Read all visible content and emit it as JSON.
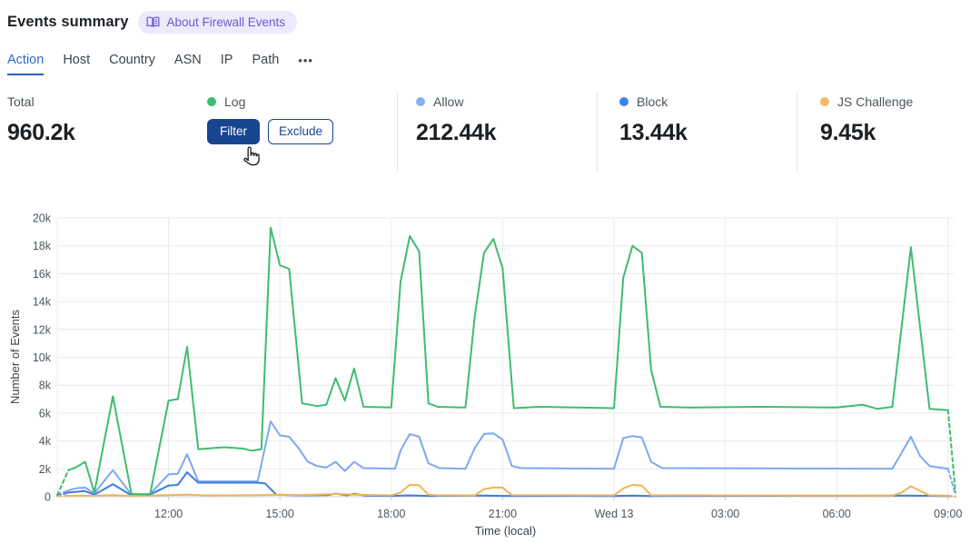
{
  "header": {
    "title": "Events summary",
    "about": {
      "label": "About Firewall Events"
    }
  },
  "tabs": {
    "items": [
      {
        "label": "Action",
        "active": true
      },
      {
        "label": "Host"
      },
      {
        "label": "Country"
      },
      {
        "label": "ASN"
      },
      {
        "label": "IP"
      },
      {
        "label": "Path"
      }
    ],
    "more": "•••"
  },
  "stats": {
    "total": {
      "label": "Total",
      "value": "960.2k"
    },
    "log": {
      "label": "Log",
      "color": "#3ebd6e",
      "filter_button": "Filter",
      "exclude_button": "Exclude"
    },
    "allow": {
      "label": "Allow",
      "value": "212.44k",
      "color": "#8aaff3"
    },
    "block": {
      "label": "Block",
      "value": "13.44k",
      "color": "#3c82f6"
    },
    "js_challenge": {
      "label": "JS Challenge",
      "value": "9.45k",
      "color": "#f0ba69"
    }
  },
  "chart_data": {
    "type": "line",
    "xlabel": "Time (local)",
    "ylabel": "Number of Events",
    "x_axis": {
      "unit": "hours from Tue 09:00 to Wed 09:00",
      "range_hours": [
        0,
        24
      ],
      "ticks": [
        {
          "h": 3,
          "label": "12:00"
        },
        {
          "h": 6,
          "label": "15:00"
        },
        {
          "h": 9,
          "label": "18:00"
        },
        {
          "h": 12,
          "label": "21:00"
        },
        {
          "h": 15,
          "label": "Wed 13"
        },
        {
          "h": 18,
          "label": "03:00"
        },
        {
          "h": 21,
          "label": "06:00"
        },
        {
          "h": 24,
          "label": "09:00"
        }
      ]
    },
    "y_axis": {
      "min": 0,
      "max": 20000,
      "tick_step": 2000,
      "ticks": [
        {
          "v": 0,
          "label": "0"
        },
        {
          "v": 2000,
          "label": "2k"
        },
        {
          "v": 4000,
          "label": "4k"
        },
        {
          "v": 6000,
          "label": "6k"
        },
        {
          "v": 8000,
          "label": "8k"
        },
        {
          "v": 10000,
          "label": "10k"
        },
        {
          "v": 12000,
          "label": "12k"
        },
        {
          "v": 14000,
          "label": "14k"
        },
        {
          "v": 16000,
          "label": "16k"
        },
        {
          "v": 18000,
          "label": "18k"
        },
        {
          "v": 20000,
          "label": "20k"
        }
      ]
    },
    "legend_position": "top-stats-row",
    "grid": true,
    "series": [
      {
        "id": "allow",
        "name": "Allow",
        "color": "#7da8f1",
        "lead": [
          [
            0,
            150
          ]
        ],
        "tail": [
          [
            24.2,
            150
          ]
        ],
        "points": [
          [
            0.3,
            450
          ],
          [
            0.5,
            600
          ],
          [
            0.75,
            650
          ],
          [
            1.0,
            250
          ],
          [
            1.5,
            1900
          ],
          [
            2.0,
            150
          ],
          [
            2.5,
            200
          ],
          [
            3.0,
            1600
          ],
          [
            3.25,
            1650
          ],
          [
            3.5,
            3050
          ],
          [
            3.8,
            1100
          ],
          [
            5.4,
            1100
          ],
          [
            5.75,
            5400
          ],
          [
            6.0,
            4400
          ],
          [
            6.25,
            4300
          ],
          [
            6.5,
            3500
          ],
          [
            6.75,
            2500
          ],
          [
            7.0,
            2200
          ],
          [
            7.25,
            2100
          ],
          [
            7.5,
            2500
          ],
          [
            7.75,
            1850
          ],
          [
            8.0,
            2500
          ],
          [
            8.25,
            2050
          ],
          [
            9.1,
            2000
          ],
          [
            9.25,
            3300
          ],
          [
            9.5,
            4500
          ],
          [
            9.75,
            4300
          ],
          [
            10.0,
            2400
          ],
          [
            10.3,
            2050
          ],
          [
            11.0,
            2000
          ],
          [
            11.25,
            3500
          ],
          [
            11.5,
            4500
          ],
          [
            11.75,
            4550
          ],
          [
            12.0,
            4100
          ],
          [
            12.25,
            2200
          ],
          [
            12.5,
            2050
          ],
          [
            15.0,
            2000
          ],
          [
            15.25,
            4200
          ],
          [
            15.5,
            4350
          ],
          [
            15.75,
            4250
          ],
          [
            16.0,
            2500
          ],
          [
            16.3,
            2050
          ],
          [
            22.5,
            2000
          ],
          [
            23.0,
            4300
          ],
          [
            23.25,
            2900
          ],
          [
            23.5,
            2200
          ],
          [
            24.0,
            2000
          ]
        ]
      },
      {
        "id": "block",
        "name": "Block",
        "color": "#3d7ee2",
        "lead": [
          [
            0,
            80
          ]
        ],
        "tail": [
          [
            24.2,
            20
          ]
        ],
        "points": [
          [
            0.3,
            300
          ],
          [
            0.5,
            350
          ],
          [
            0.75,
            400
          ],
          [
            1.0,
            150
          ],
          [
            1.5,
            900
          ],
          [
            2.0,
            100
          ],
          [
            2.5,
            150
          ],
          [
            3.0,
            800
          ],
          [
            3.25,
            850
          ],
          [
            3.5,
            1750
          ],
          [
            3.8,
            1000
          ],
          [
            5.4,
            1000
          ],
          [
            5.6,
            950
          ],
          [
            5.9,
            150
          ],
          [
            6.5,
            100
          ],
          [
            7.3,
            120
          ],
          [
            7.5,
            220
          ],
          [
            7.8,
            100
          ],
          [
            8.0,
            200
          ],
          [
            8.3,
            80
          ],
          [
            9.0,
            60
          ],
          [
            9.5,
            100
          ],
          [
            10.0,
            60
          ],
          [
            11.5,
            80
          ],
          [
            12.0,
            60
          ],
          [
            15.0,
            50
          ],
          [
            15.5,
            80
          ],
          [
            16.0,
            50
          ],
          [
            23.0,
            80
          ],
          [
            24.0,
            50
          ]
        ]
      },
      {
        "id": "js_challenge",
        "name": "JS Challenge",
        "color": "#efb45a",
        "lead": [
          [
            0,
            50
          ]
        ],
        "tail": [
          [
            24.2,
            20
          ]
        ],
        "points": [
          [
            0.3,
            70
          ],
          [
            1.0,
            80
          ],
          [
            1.5,
            120
          ],
          [
            2.0,
            60
          ],
          [
            3.0,
            120
          ],
          [
            3.5,
            150
          ],
          [
            4.0,
            100
          ],
          [
            5.5,
            120
          ],
          [
            6.0,
            150
          ],
          [
            6.5,
            120
          ],
          [
            7.0,
            150
          ],
          [
            7.5,
            200
          ],
          [
            8.0,
            150
          ],
          [
            9.0,
            100
          ],
          [
            9.25,
            300
          ],
          [
            9.5,
            850
          ],
          [
            9.75,
            820
          ],
          [
            10.0,
            150
          ],
          [
            10.25,
            100
          ],
          [
            11.25,
            100
          ],
          [
            11.5,
            550
          ],
          [
            11.75,
            650
          ],
          [
            12.0,
            650
          ],
          [
            12.25,
            120
          ],
          [
            15.0,
            100
          ],
          [
            15.25,
            600
          ],
          [
            15.5,
            850
          ],
          [
            15.75,
            800
          ],
          [
            16.0,
            100
          ],
          [
            22.5,
            80
          ],
          [
            22.75,
            300
          ],
          [
            23.0,
            750
          ],
          [
            23.5,
            100
          ],
          [
            24.0,
            70
          ]
        ]
      },
      {
        "id": "log",
        "name": "Log",
        "color": "#3ebd6e",
        "lead": [
          [
            0,
            100
          ]
        ],
        "tail": [
          [
            24.2,
            300
          ]
        ],
        "points": [
          [
            0.3,
            1900
          ],
          [
            0.5,
            2100
          ],
          [
            0.75,
            2500
          ],
          [
            1.0,
            300
          ],
          [
            1.5,
            7200
          ],
          [
            2.0,
            200
          ],
          [
            2.5,
            150
          ],
          [
            3.0,
            6900
          ],
          [
            3.25,
            7000
          ],
          [
            3.5,
            10750
          ],
          [
            3.8,
            3400
          ],
          [
            4.5,
            3550
          ],
          [
            5.0,
            3450
          ],
          [
            5.25,
            3300
          ],
          [
            5.5,
            3400
          ],
          [
            5.75,
            19300
          ],
          [
            6.0,
            16600
          ],
          [
            6.25,
            16350
          ],
          [
            6.6,
            6700
          ],
          [
            7.0,
            6500
          ],
          [
            7.25,
            6600
          ],
          [
            7.5,
            8500
          ],
          [
            7.75,
            6900
          ],
          [
            8.0,
            9200
          ],
          [
            8.25,
            6450
          ],
          [
            9.0,
            6400
          ],
          [
            9.25,
            15400
          ],
          [
            9.5,
            18700
          ],
          [
            9.75,
            17600
          ],
          [
            10.0,
            6700
          ],
          [
            10.25,
            6450
          ],
          [
            11.0,
            6400
          ],
          [
            11.25,
            13000
          ],
          [
            11.5,
            17500
          ],
          [
            11.75,
            18500
          ],
          [
            12.0,
            16400
          ],
          [
            12.3,
            6350
          ],
          [
            13.0,
            6450
          ],
          [
            14.0,
            6400
          ],
          [
            15.0,
            6350
          ],
          [
            15.25,
            15700
          ],
          [
            15.5,
            18000
          ],
          [
            15.75,
            17500
          ],
          [
            16.0,
            9100
          ],
          [
            16.25,
            6450
          ],
          [
            17.0,
            6400
          ],
          [
            19.0,
            6450
          ],
          [
            21.0,
            6400
          ],
          [
            21.7,
            6600
          ],
          [
            22.1,
            6300
          ],
          [
            22.5,
            6450
          ],
          [
            23.0,
            17900
          ],
          [
            23.5,
            6300
          ],
          [
            24.0,
            6200
          ]
        ]
      }
    ]
  }
}
